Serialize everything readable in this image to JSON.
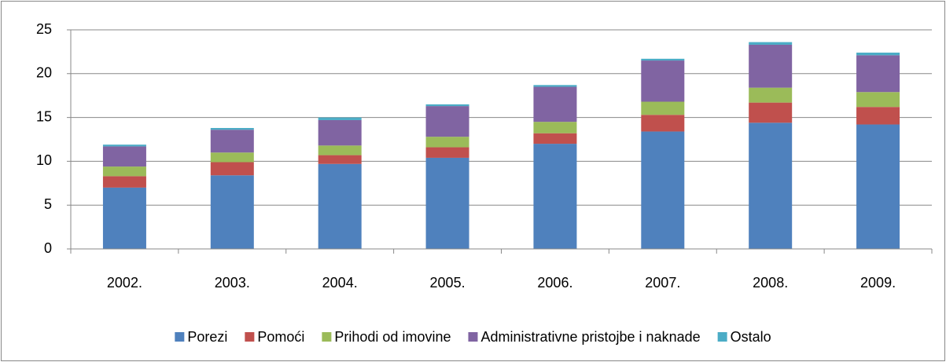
{
  "chart_data": {
    "type": "stacked-bar",
    "categories": [
      "2002.",
      "2003.",
      "2004.",
      "2005.",
      "2006.",
      "2007.",
      "2008.",
      "2009."
    ],
    "series": [
      {
        "name": "Porezi",
        "color": "#4f81bd",
        "values": [
          7.0,
          8.4,
          9.7,
          10.4,
          12.0,
          13.4,
          14.4,
          14.2
        ]
      },
      {
        "name": "Pomoći",
        "color": "#c0504d",
        "values": [
          1.3,
          1.5,
          1.0,
          1.2,
          1.2,
          1.9,
          2.3,
          2.0
        ]
      },
      {
        "name": "Prihodi od imovine",
        "color": "#9bbb59",
        "values": [
          1.1,
          1.1,
          1.1,
          1.2,
          1.3,
          1.5,
          1.7,
          1.7
        ]
      },
      {
        "name": "Administrativne pristojbe i naknade",
        "color": "#8064a2",
        "values": [
          2.3,
          2.6,
          2.9,
          3.5,
          4.0,
          4.7,
          4.9,
          4.2
        ]
      },
      {
        "name": "Ostalo",
        "color": "#4bacc6",
        "values": [
          0.2,
          0.2,
          0.3,
          0.2,
          0.2,
          0.2,
          0.3,
          0.3
        ]
      }
    ],
    "ylim": [
      0,
      25
    ],
    "yticks": [
      0,
      5,
      10,
      15,
      20,
      25
    ],
    "grid": true,
    "legend": "bottom"
  }
}
